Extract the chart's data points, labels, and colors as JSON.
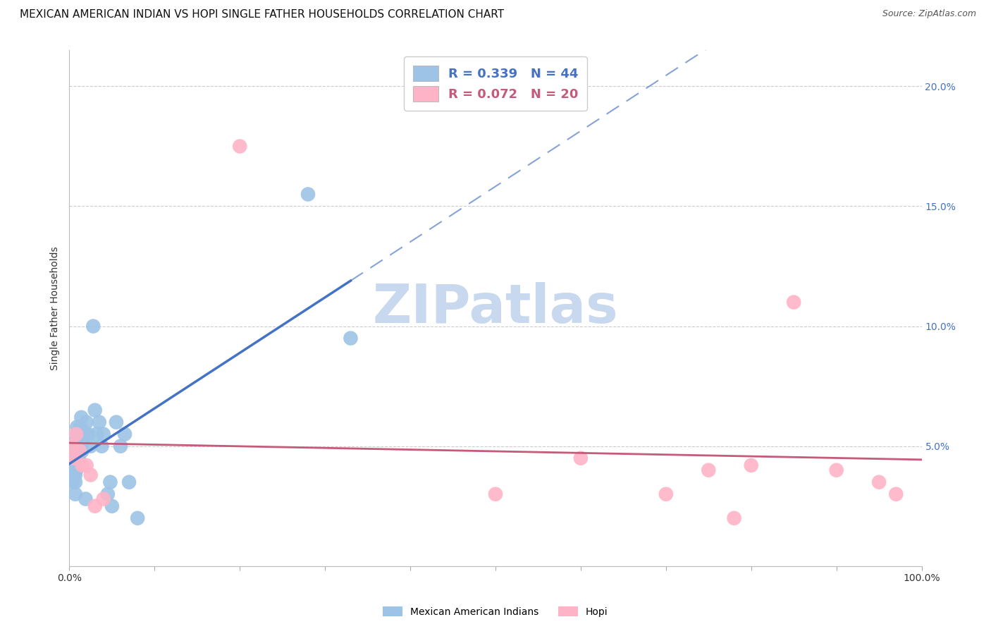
{
  "title": "MEXICAN AMERICAN INDIAN VS HOPI SINGLE FATHER HOUSEHOLDS CORRELATION CHART",
  "source": "Source: ZipAtlas.com",
  "ylabel": "Single Father Households",
  "xlim": [
    0.0,
    1.0
  ],
  "ylim": [
    0.0,
    0.215
  ],
  "yticks": [
    0.0,
    0.05,
    0.1,
    0.15,
    0.2
  ],
  "ytick_labels": [
    "",
    "5.0%",
    "10.0%",
    "15.0%",
    "20.0%"
  ],
  "xticks": [
    0.0,
    0.1,
    0.2,
    0.3,
    0.4,
    0.5,
    0.6,
    0.7,
    0.8,
    0.9,
    1.0
  ],
  "xtick_labels": [
    "0.0%",
    "",
    "",
    "",
    "",
    "",
    "",
    "",
    "",
    "",
    "100.0%"
  ],
  "blue_R": 0.339,
  "blue_N": 44,
  "pink_R": 0.072,
  "pink_N": 20,
  "blue_scatter_x": [
    0.002,
    0.003,
    0.003,
    0.004,
    0.004,
    0.005,
    0.005,
    0.006,
    0.006,
    0.007,
    0.007,
    0.007,
    0.008,
    0.008,
    0.009,
    0.009,
    0.01,
    0.011,
    0.012,
    0.013,
    0.014,
    0.015,
    0.016,
    0.018,
    0.019,
    0.02,
    0.022,
    0.025,
    0.028,
    0.03,
    0.032,
    0.035,
    0.038,
    0.04,
    0.045,
    0.048,
    0.05,
    0.055,
    0.06,
    0.065,
    0.07,
    0.08,
    0.28,
    0.33
  ],
  "blue_scatter_y": [
    0.04,
    0.038,
    0.036,
    0.035,
    0.042,
    0.045,
    0.048,
    0.05,
    0.052,
    0.03,
    0.035,
    0.038,
    0.04,
    0.042,
    0.055,
    0.058,
    0.05,
    0.045,
    0.048,
    0.058,
    0.062,
    0.048,
    0.052,
    0.055,
    0.028,
    0.06,
    0.055,
    0.05,
    0.1,
    0.065,
    0.055,
    0.06,
    0.05,
    0.055,
    0.03,
    0.035,
    0.025,
    0.06,
    0.05,
    0.055,
    0.035,
    0.02,
    0.155,
    0.095
  ],
  "pink_scatter_x": [
    0.003,
    0.005,
    0.008,
    0.012,
    0.015,
    0.02,
    0.025,
    0.03,
    0.04,
    0.2,
    0.5,
    0.6,
    0.7,
    0.75,
    0.78,
    0.8,
    0.85,
    0.9,
    0.95,
    0.97
  ],
  "pink_scatter_y": [
    0.05,
    0.045,
    0.055,
    0.048,
    0.042,
    0.042,
    0.038,
    0.025,
    0.028,
    0.175,
    0.03,
    0.045,
    0.03,
    0.04,
    0.02,
    0.042,
    0.11,
    0.04,
    0.035,
    0.03
  ],
  "blue_line_color": "#4472C4",
  "pink_line_color": "#C55A7A",
  "blue_scatter_color": "#9DC3E6",
  "pink_scatter_color": "#FFB3C6",
  "grid_color": "#CCCCCC",
  "watermark_color": "#C8D8EE",
  "title_fontsize": 11,
  "axis_label_fontsize": 10,
  "tick_fontsize": 10,
  "legend_fontsize": 13,
  "right_tick_color": "#4472C4",
  "bottom_legend_labels": [
    "Mexican American Indians",
    "Hopi"
  ]
}
